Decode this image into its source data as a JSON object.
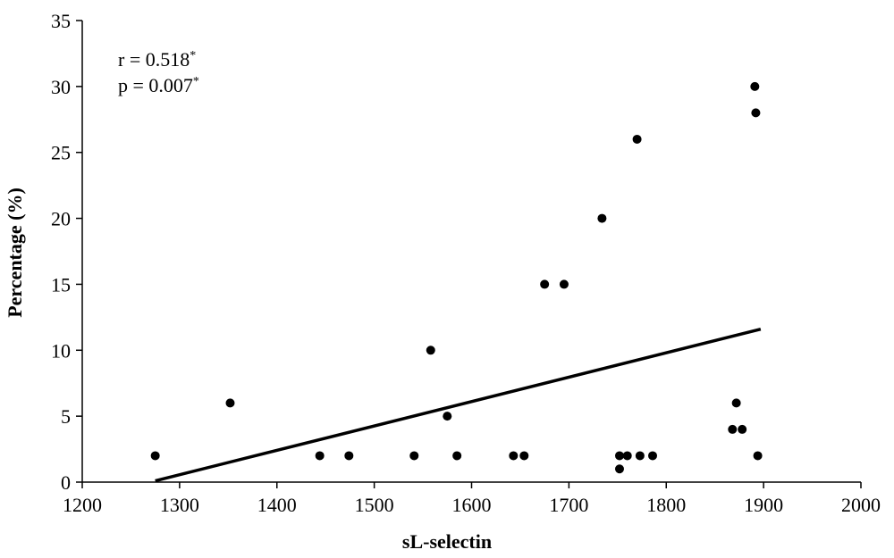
{
  "chart_data": {
    "type": "scatter",
    "title": "",
    "xlabel": "sL-selectin",
    "ylabel": "Percentage (%)",
    "xlim": [
      1200,
      2000
    ],
    "ylim": [
      0,
      35
    ],
    "x_ticks": [
      "1200",
      "1300",
      "1400",
      "1500",
      "1600",
      "1700",
      "1800",
      "1900",
      "2000"
    ],
    "y_ticks": [
      "0",
      "5",
      "10",
      "15",
      "20",
      "25",
      "30",
      "35"
    ],
    "grid": false,
    "legend": "none",
    "annotations": {
      "r_text": "r = 0.518",
      "r_mark": "*",
      "p_text": "p = 0.007",
      "p_mark": "*"
    },
    "points": [
      {
        "x": 1275,
        "y": 2
      },
      {
        "x": 1352,
        "y": 6
      },
      {
        "x": 1444,
        "y": 2
      },
      {
        "x": 1474,
        "y": 2
      },
      {
        "x": 1541,
        "y": 2
      },
      {
        "x": 1558,
        "y": 10
      },
      {
        "x": 1575,
        "y": 5
      },
      {
        "x": 1585,
        "y": 2
      },
      {
        "x": 1643,
        "y": 2
      },
      {
        "x": 1654,
        "y": 2
      },
      {
        "x": 1675,
        "y": 15
      },
      {
        "x": 1695,
        "y": 15
      },
      {
        "x": 1734,
        "y": 20
      },
      {
        "x": 1752,
        "y": 2
      },
      {
        "x": 1752,
        "y": 1
      },
      {
        "x": 1760,
        "y": 2
      },
      {
        "x": 1770,
        "y": 26
      },
      {
        "x": 1773,
        "y": 2
      },
      {
        "x": 1786,
        "y": 2
      },
      {
        "x": 1868,
        "y": 4
      },
      {
        "x": 1872,
        "y": 6
      },
      {
        "x": 1878,
        "y": 4
      },
      {
        "x": 1891,
        "y": 30
      },
      {
        "x": 1892,
        "y": 28
      },
      {
        "x": 1894,
        "y": 2
      }
    ],
    "trendline": {
      "x": [
        1275,
        1897
      ],
      "y": [
        0.1,
        11.6
      ]
    },
    "colors": {
      "points": "#000000",
      "trendline": "#000000",
      "axes": "#000000"
    }
  }
}
